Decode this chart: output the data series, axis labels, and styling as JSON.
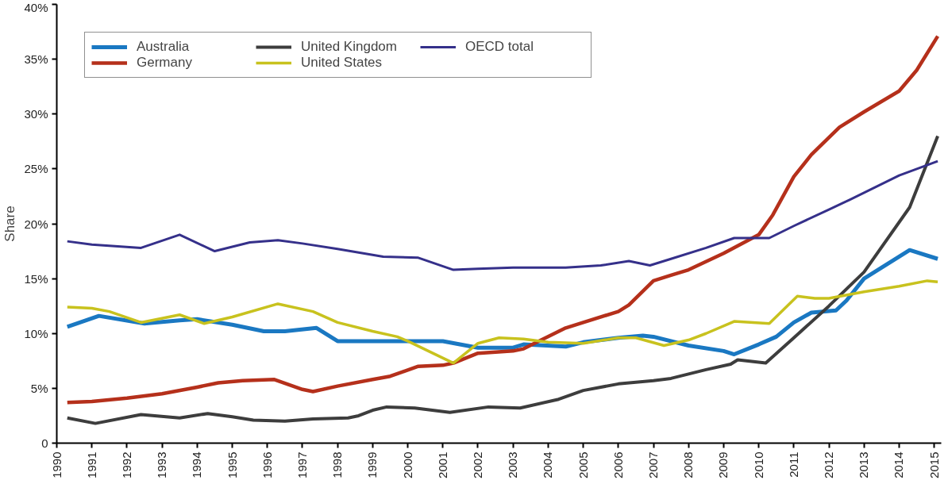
{
  "chart_data": {
    "type": "line",
    "ylabel": "Share",
    "xlim": [
      1990,
      2015.2
    ],
    "xticks": [
      1990,
      1991,
      1992,
      1993,
      1994,
      1995,
      1996,
      1997,
      1998,
      1999,
      2000,
      2001,
      2002,
      2003,
      2004,
      2005,
      2006,
      2007,
      2008,
      2009,
      2010,
      2011,
      2012,
      2013,
      2014,
      2015
    ],
    "ylim": [
      0,
      40
    ],
    "yticks": [
      {
        "value": 0,
        "label": "0"
      },
      {
        "value": 5,
        "label": "5%"
      },
      {
        "value": 10,
        "label": "10%"
      },
      {
        "value": 15,
        "label": "15%"
      },
      {
        "value": 20,
        "label": "20%"
      },
      {
        "value": 25,
        "label": "25%"
      },
      {
        "value": 30,
        "label": "30%"
      },
      {
        "value": 35,
        "label": "35%"
      },
      {
        "value": 40,
        "label": "40%"
      }
    ],
    "grid": false,
    "legend": "top left",
    "series": [
      {
        "name": "Australia",
        "color": "#1a78c2",
        "x": [
          1990.3,
          1991.2,
          1992.5,
          1993.5,
          1994,
          1995,
          1995.9,
          1996.5,
          1997.4,
          1998,
          1999,
          2001,
          2002,
          2003,
          2003.3,
          2004.5,
          2005,
          2006,
          2006.7,
          2007,
          2008,
          2009,
          2009.3,
          2010,
          2010.5,
          2011,
          2011.5,
          2012.2,
          2012.5,
          2013,
          2014.3,
          2015.1
        ],
        "values": [
          10.6,
          11.6,
          10.9,
          11.2,
          11.3,
          10.8,
          10.2,
          10.2,
          10.5,
          9.3,
          9.3,
          9.3,
          8.7,
          8.7,
          9.0,
          8.8,
          9.2,
          9.6,
          9.8,
          9.7,
          8.9,
          8.4,
          8.1,
          9.0,
          9.7,
          11.0,
          11.9,
          12.1,
          13.0,
          15.0,
          17.6,
          16.8
        ]
      },
      {
        "name": "Germany",
        "color": "#b5301b",
        "x": [
          1990.3,
          1991,
          1992,
          1993,
          1994,
          1994.6,
          1995.3,
          1996.2,
          1997,
          1997.3,
          1998,
          1999,
          1999.5,
          2000.3,
          2001,
          2001.3,
          2002,
          2003,
          2003.3,
          2004.5,
          2005,
          2006,
          2006.3,
          2007,
          2007.5,
          2008,
          2009,
          2010,
          2010.4,
          2011,
          2011.5,
          2012.3,
          2013,
          2014,
          2014.5,
          2015.1
        ],
        "values": [
          3.7,
          3.8,
          4.1,
          4.5,
          5.1,
          5.5,
          5.7,
          5.8,
          4.9,
          4.7,
          5.2,
          5.8,
          6.1,
          7.0,
          7.1,
          7.3,
          8.2,
          8.4,
          8.6,
          10.5,
          11.0,
          12.0,
          12.6,
          14.8,
          15.3,
          15.8,
          17.3,
          19.0,
          20.8,
          24.3,
          26.3,
          28.8,
          30.2,
          32.1,
          34.0,
          37.1
        ]
      },
      {
        "name": "United Kingdom",
        "color": "#3d3d3d",
        "x": [
          1990.3,
          1991.1,
          1992.4,
          1993.5,
          1994.3,
          1995,
          1995.6,
          1996.5,
          1997.3,
          1998.3,
          1998.6,
          1999,
          1999.4,
          2000.2,
          2001.2,
          2002.3,
          2003.2,
          2004.3,
          2005,
          2006,
          2007,
          2007.5,
          2008.5,
          2009.2,
          2009.4,
          2010.2,
          2011,
          2012,
          2013,
          2014.3,
          2015.1
        ],
        "values": [
          2.3,
          1.8,
          2.6,
          2.3,
          2.7,
          2.4,
          2.1,
          2.0,
          2.2,
          2.3,
          2.5,
          3.0,
          3.3,
          3.2,
          2.8,
          3.3,
          3.2,
          4.0,
          4.8,
          5.4,
          5.7,
          5.9,
          6.7,
          7.2,
          7.6,
          7.3,
          9.6,
          12.5,
          15.6,
          21.5,
          28.0
        ]
      },
      {
        "name": "United States",
        "color": "#c8c21e",
        "x": [
          1990.3,
          1991,
          1991.5,
          1992.4,
          1993.5,
          1994.2,
          1995,
          1996.3,
          1997.3,
          1998,
          1999,
          1999.7,
          2000,
          2001.3,
          2002,
          2002.6,
          2003.3,
          2004,
          2005,
          2006,
          2006.5,
          2007.3,
          2008,
          2008.5,
          2009.3,
          2010.3,
          2011.1,
          2011.6,
          2012,
          2013,
          2014,
          2014.8,
          2015.1
        ],
        "values": [
          12.4,
          12.3,
          12.0,
          11.0,
          11.7,
          10.9,
          11.5,
          12.7,
          12.0,
          11.0,
          10.2,
          9.7,
          9.3,
          7.3,
          9.1,
          9.6,
          9.5,
          9.2,
          9.1,
          9.6,
          9.6,
          8.9,
          9.4,
          10.0,
          11.1,
          10.9,
          13.4,
          13.2,
          13.2,
          13.8,
          14.3,
          14.8,
          14.7
        ]
      },
      {
        "name": "OECD total",
        "color": "#35308a",
        "x": [
          1990.3,
          1991,
          1992.4,
          1993.5,
          1994.5,
          1995.5,
          1996.3,
          1997,
          1998,
          1999.3,
          2000.3,
          2001.3,
          2002,
          2003,
          2004.5,
          2005.5,
          2006.3,
          2006.9,
          2007.5,
          2008.5,
          2009.3,
          2010.3,
          2011,
          2012,
          2012.6,
          2014,
          2015.1
        ],
        "values": [
          18.4,
          18.1,
          17.8,
          19.0,
          17.5,
          18.3,
          18.5,
          18.2,
          17.7,
          17.0,
          16.9,
          15.8,
          15.9,
          16.0,
          16.0,
          16.2,
          16.6,
          16.2,
          16.8,
          17.8,
          18.7,
          18.7,
          19.8,
          21.3,
          22.2,
          24.4,
          25.7
        ]
      }
    ]
  }
}
